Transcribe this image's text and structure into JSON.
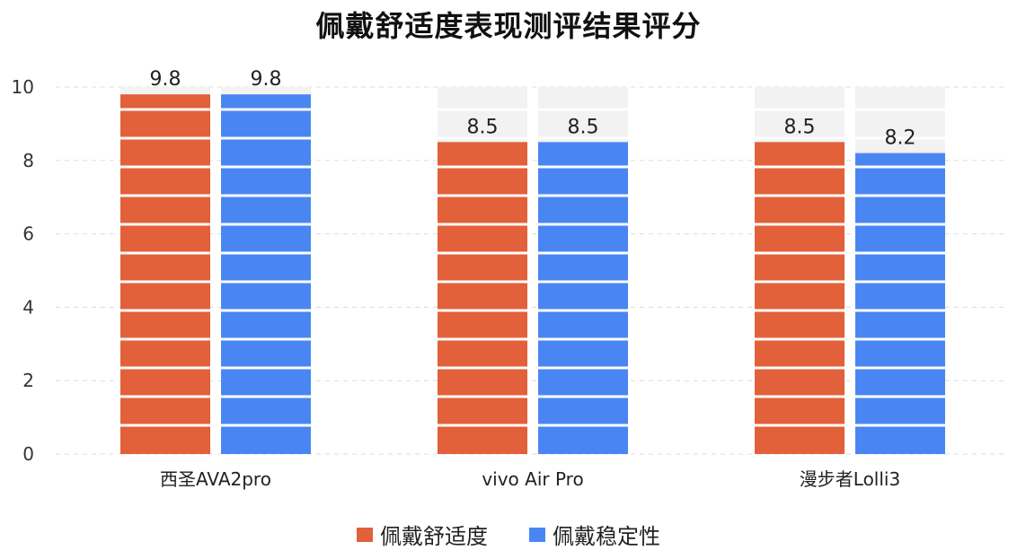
{
  "chart_data": {
    "type": "bar",
    "title": "佩戴舒适度表现测评结果评分",
    "categories": [
      "西圣AVA2pro",
      "vivo Air Pro",
      "漫步者Lolli3"
    ],
    "series": [
      {
        "name": "佩戴舒适度",
        "values": [
          9.8,
          8.5,
          8.5
        ],
        "color": "#E2603A"
      },
      {
        "name": "佩戴稳定性",
        "values": [
          9.8,
          8.5,
          8.2
        ],
        "color": "#4A86F3"
      }
    ],
    "ylim": [
      0,
      10
    ],
    "yticks": [
      0,
      2,
      4,
      6,
      8,
      10
    ],
    "xlabel": "",
    "ylabel": "",
    "grid": true,
    "legend": "bottom",
    "background_track_color": "#F2F2F2"
  }
}
